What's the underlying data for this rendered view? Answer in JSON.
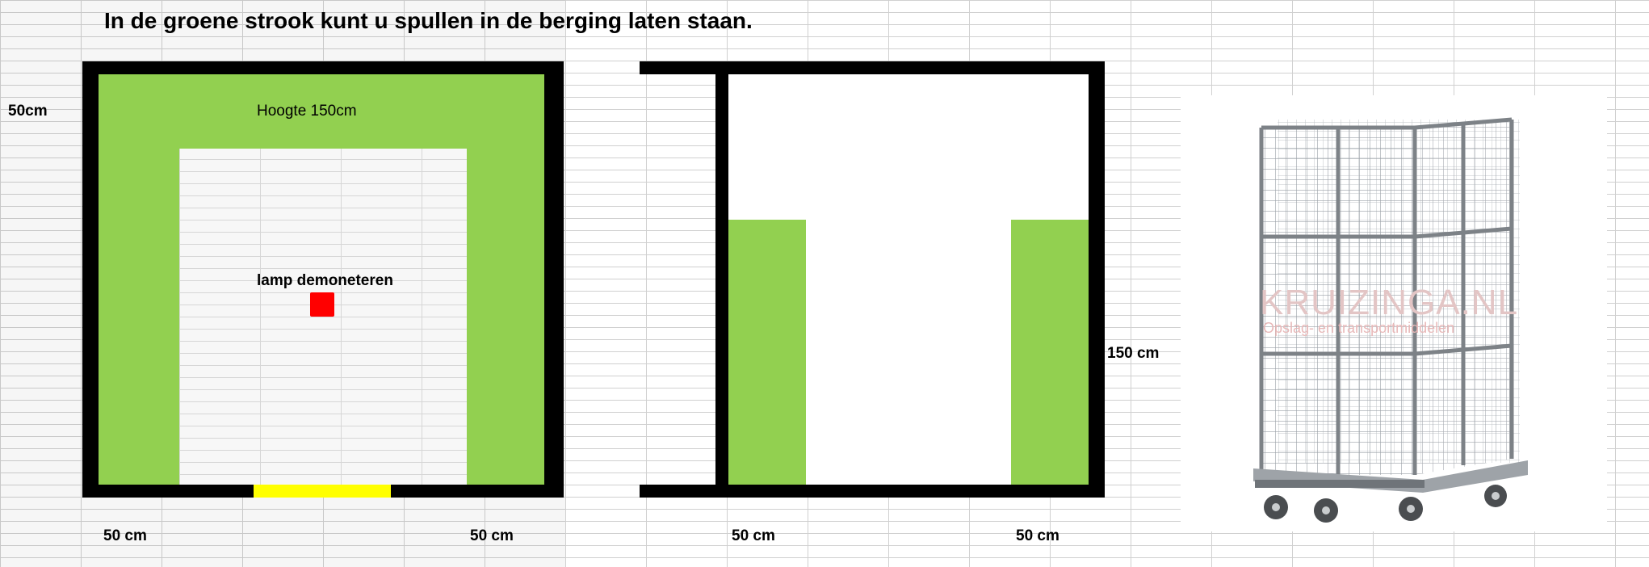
{
  "title": "In de groene strook kunt u spullen in de berging laten staan.",
  "left_plan": {
    "height_label": "Hoogte 150cm",
    "lamp_label": "lamp demoneteren",
    "top_dim": "50cm",
    "bottom_left_dim": "50 cm",
    "bottom_right_dim": "50 cm"
  },
  "right_plan": {
    "side_dim": "150 cm",
    "bottom_left_dim": "50 cm",
    "bottom_right_dim": "50 cm"
  },
  "photo": {
    "watermark": "KRUIZINGA.NL",
    "watermark_sub": "Opslag- en transportmiddelen"
  },
  "colors": {
    "green": "#92d050",
    "wall": "#000000",
    "door": "#ffff00",
    "lamp": "#ff0000"
  }
}
